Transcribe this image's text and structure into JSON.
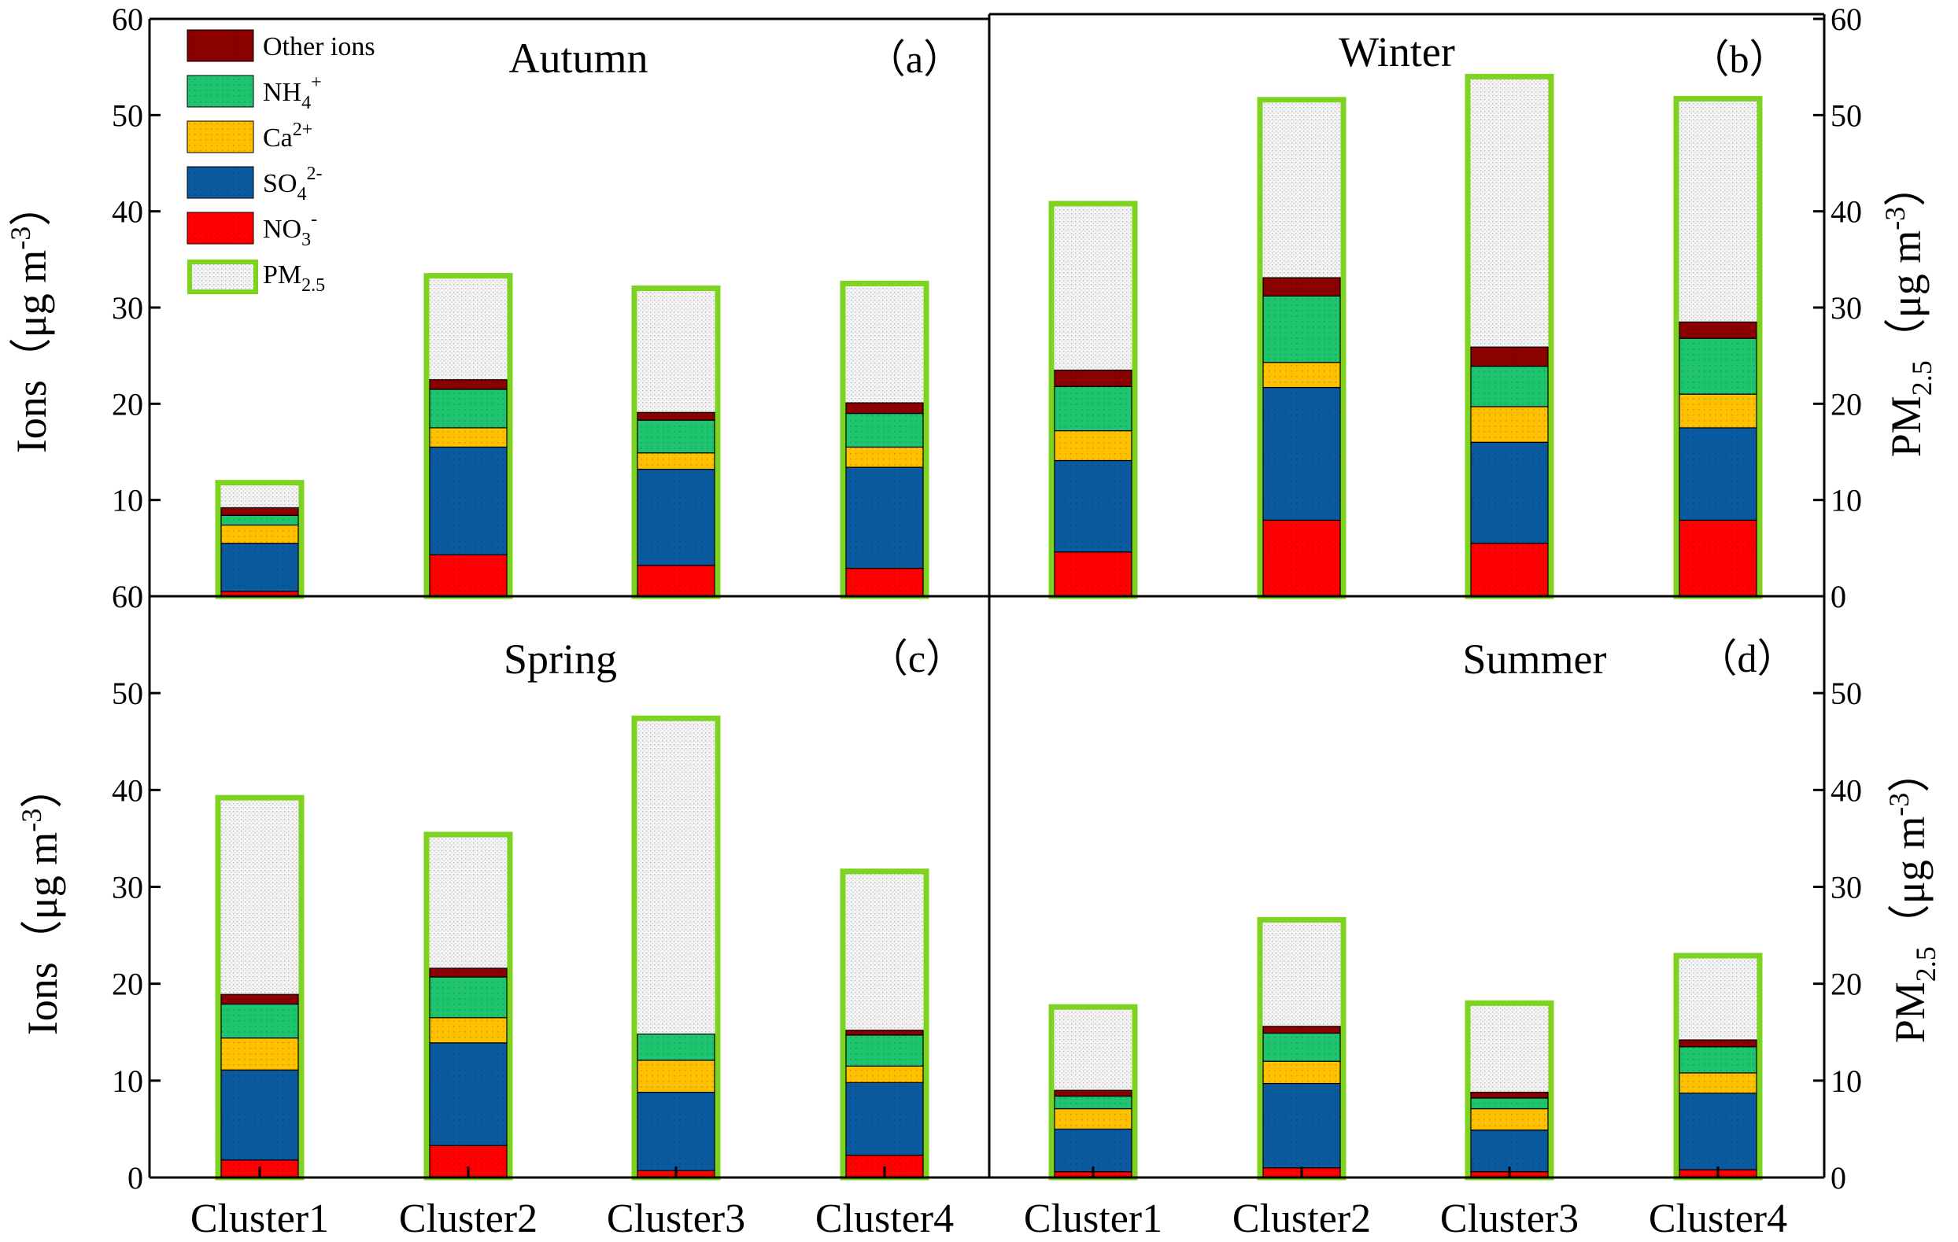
{
  "chart_data": {
    "type": "bar",
    "stacked": true,
    "categories": [
      "Cluster1",
      "Cluster2",
      "Cluster3",
      "Cluster4"
    ],
    "ylim": [
      0,
      60
    ],
    "yticks": [
      0,
      10,
      20,
      30,
      40,
      50,
      60
    ],
    "left_ylabel": {
      "main": "Ions（μg m",
      "sup": "-3",
      "tail": "）"
    },
    "right_ylabel": {
      "main": "PM",
      "sub": "2.5",
      "tail": "（μg m",
      "sup": "-3",
      "tail2": "）"
    },
    "legend": [
      {
        "key": "other",
        "label": "Other ions",
        "sub": "",
        "sup": "",
        "color": "#8b0000"
      },
      {
        "key": "nh4",
        "label": "NH",
        "sub": "4",
        "sup": "+",
        "color": "#1ec46e"
      },
      {
        "key": "ca",
        "label": "Ca",
        "sub": "",
        "sup": "2+",
        "color": "#ffc000"
      },
      {
        "key": "so4",
        "label": "SO",
        "sub": "4",
        "sup": "2-",
        "color": "#0a5aa0"
      },
      {
        "key": "no3",
        "label": "NO",
        "sub": "3",
        "sup": "-",
        "color": "#ff0000"
      },
      {
        "key": "pm25",
        "label": "PM",
        "sub": "2.5",
        "sup": "",
        "color": "#e8e8e8",
        "edge": "#7ed321"
      }
    ],
    "panels": [
      {
        "id": "a",
        "title": "Autumn",
        "label": "（a）",
        "pm25": [
          11.8,
          33.3,
          32.0,
          32.5
        ],
        "no3": [
          0.5,
          4.3,
          3.2,
          2.9
        ],
        "so4": [
          5.0,
          11.2,
          10.0,
          10.5
        ],
        "ca": [
          1.9,
          2.0,
          1.7,
          2.1
        ],
        "nh4": [
          1.0,
          4.0,
          3.4,
          3.5
        ],
        "other": [
          0.8,
          1.0,
          0.8,
          1.1
        ]
      },
      {
        "id": "b",
        "title": "Winter",
        "label": "（b）",
        "pm25": [
          40.8,
          51.6,
          54.0,
          51.7
        ],
        "no3": [
          4.6,
          7.9,
          5.5,
          7.9
        ],
        "so4": [
          9.5,
          13.8,
          10.5,
          9.6
        ],
        "ca": [
          3.1,
          2.6,
          3.7,
          3.5
        ],
        "nh4": [
          4.6,
          6.9,
          4.2,
          5.8
        ],
        "other": [
          1.7,
          1.9,
          2.0,
          1.7
        ]
      },
      {
        "id": "c",
        "title": "Spring",
        "label": "（c）",
        "pm25": [
          39.2,
          35.4,
          47.4,
          31.6
        ],
        "no3": [
          1.8,
          3.3,
          0.7,
          2.3
        ],
        "so4": [
          9.3,
          10.6,
          8.1,
          7.5
        ],
        "ca": [
          3.3,
          2.6,
          3.3,
          1.7
        ],
        "nh4": [
          3.5,
          4.2,
          2.7,
          3.2
        ],
        "other": [
          1.0,
          0.9,
          0.0,
          0.5
        ]
      },
      {
        "id": "d",
        "title": "Summer",
        "label": "（d）",
        "pm25": [
          17.6,
          26.6,
          18.0,
          22.9
        ],
        "no3": [
          0.6,
          1.0,
          0.6,
          0.8
        ],
        "so4": [
          4.4,
          8.7,
          4.3,
          7.9
        ],
        "ca": [
          2.1,
          2.3,
          2.2,
          2.1
        ],
        "nh4": [
          1.3,
          2.9,
          1.1,
          2.7
        ],
        "other": [
          0.6,
          0.7,
          0.6,
          0.7
        ]
      }
    ]
  }
}
